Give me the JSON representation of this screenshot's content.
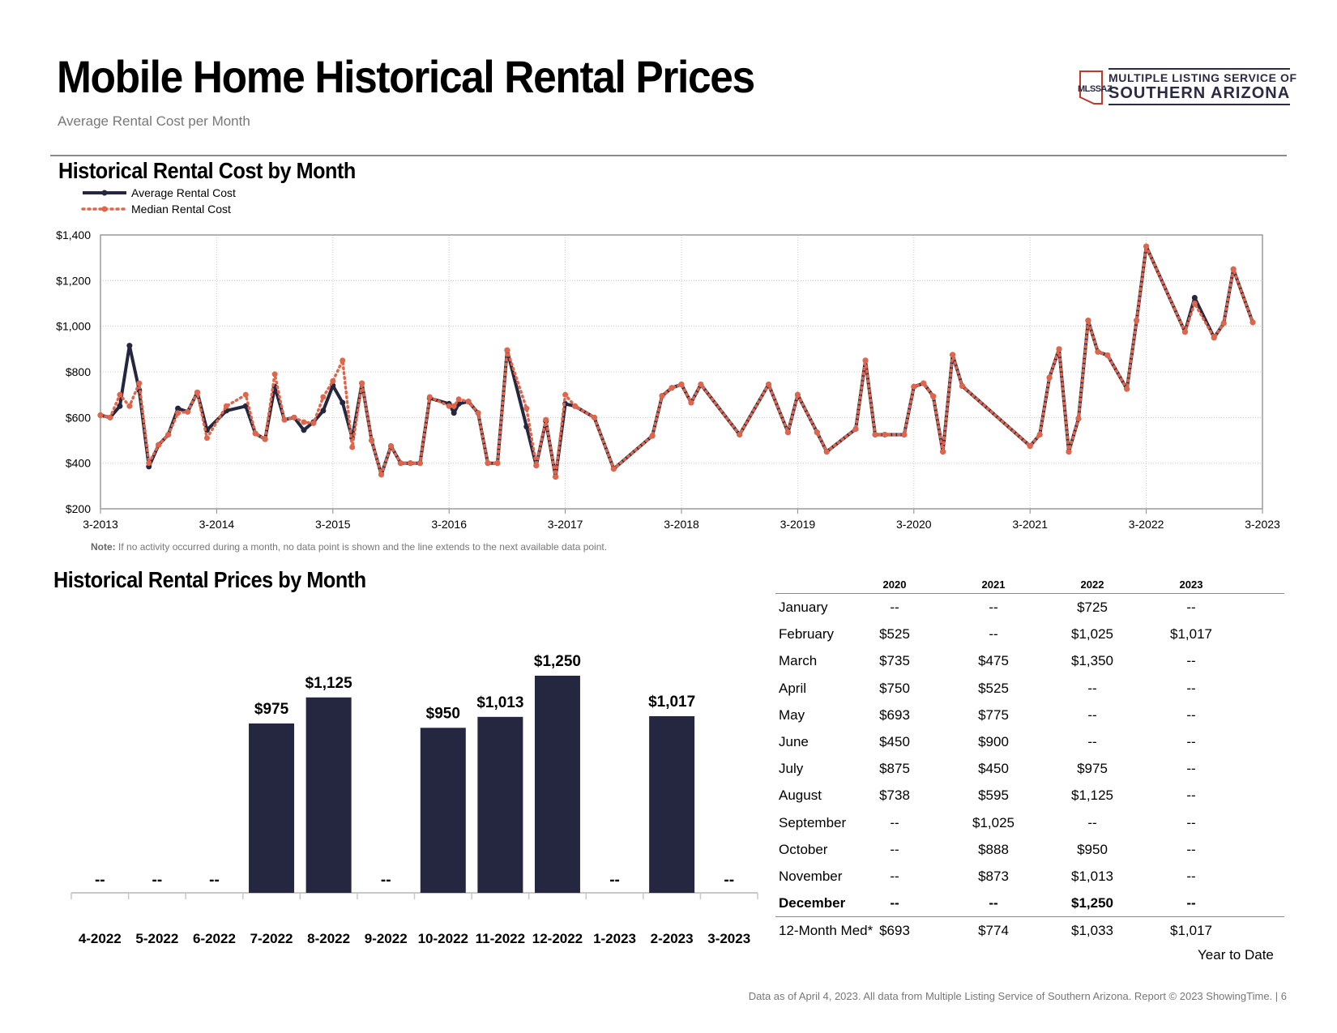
{
  "header": {
    "title": "Mobile Home Historical Rental Prices",
    "subtitle": "Average Rental Cost per Month",
    "logo_line1": "MULTIPLE LISTING SERVICE OF",
    "logo_line2": "SOUTHERN ARIZONA",
    "logo_abbr": "MLSSAZ"
  },
  "colors": {
    "navy": "#252640",
    "orange": "#e0654a",
    "grid": "#c8c8c8"
  },
  "chart_data": [
    {
      "type": "line",
      "title": "Historical Rental Cost by Month",
      "legend": [
        "Average Rental Cost",
        "Median Rental Cost"
      ],
      "ylim": [
        200,
        1400
      ],
      "yticks": [
        200,
        400,
        600,
        800,
        1000,
        1200,
        1400
      ],
      "ytick_labels": [
        "$200",
        "$400",
        "$600",
        "$800",
        "$1,000",
        "$1,200",
        "$1,400"
      ],
      "xlim": [
        0,
        120
      ],
      "xticks": [
        0,
        12,
        24,
        36,
        48,
        60,
        72,
        84,
        96,
        108,
        120
      ],
      "xtick_labels": [
        "3-2013",
        "3-2014",
        "3-2015",
        "3-2016",
        "3-2017",
        "3-2018",
        "3-2019",
        "3-2020",
        "3-2021",
        "3-2022",
        "3-2023"
      ],
      "note_label": "Note:",
      "note": "If no activity occurred during a month, no data point is shown and the line extends to the next available data point.",
      "series": [
        {
          "name": "Average Rental Cost",
          "points": [
            [
              0,
              610
            ],
            [
              1,
              600
            ],
            [
              2,
              650
            ],
            [
              3,
              915
            ],
            [
              4,
              720
            ],
            [
              5,
              385
            ],
            [
              6,
              480
            ],
            [
              7,
              525
            ],
            [
              8,
              640
            ],
            [
              9,
              625
            ],
            [
              10,
              710
            ],
            [
              11,
              545
            ],
            [
              13,
              630
            ],
            [
              15,
              650
            ],
            [
              16,
              530
            ],
            [
              17,
              505
            ],
            [
              18,
              735
            ],
            [
              19,
              590
            ],
            [
              20,
              600
            ],
            [
              21,
              545
            ],
            [
              22,
              580
            ],
            [
              23,
              630
            ],
            [
              24,
              740
            ],
            [
              25,
              665
            ],
            [
              26,
              510
            ],
            [
              27,
              750
            ],
            [
              28,
              500
            ],
            [
              29,
              350
            ],
            [
              30,
              475
            ],
            [
              31,
              400
            ],
            [
              32,
              400
            ],
            [
              33,
              400
            ],
            [
              34,
              685
            ],
            [
              36,
              660
            ],
            [
              36.5,
              620
            ],
            [
              37,
              660
            ],
            [
              38,
              670
            ],
            [
              39,
              620
            ],
            [
              40,
              400
            ],
            [
              41,
              400
            ],
            [
              42,
              895
            ],
            [
              44,
              560
            ],
            [
              45,
              390
            ],
            [
              46,
              585
            ],
            [
              47,
              340
            ],
            [
              48,
              660
            ],
            [
              49,
              650
            ],
            [
              51,
              600
            ],
            [
              53,
              375
            ],
            [
              57,
              520
            ],
            [
              58,
              695
            ],
            [
              59,
              730
            ],
            [
              60,
              745
            ],
            [
              61,
              665
            ],
            [
              62,
              745
            ],
            [
              66,
              525
            ],
            [
              69,
              745
            ],
            [
              71,
              535
            ],
            [
              72,
              700
            ],
            [
              74,
              535
            ],
            [
              75,
              450
            ],
            [
              78,
              550
            ],
            [
              79,
              850
            ],
            [
              80,
              525
            ],
            [
              81,
              525
            ],
            [
              83,
              525
            ],
            [
              84,
              735
            ],
            [
              85,
              750
            ],
            [
              86,
              693
            ],
            [
              87,
              450
            ],
            [
              88,
              875
            ],
            [
              89,
              738
            ],
            [
              96,
              475
            ],
            [
              97,
              525
            ],
            [
              98,
              775
            ],
            [
              99,
              900
            ],
            [
              100,
              450
            ],
            [
              101,
              595
            ],
            [
              102,
              1025
            ],
            [
              103,
              888
            ],
            [
              104,
              873
            ],
            [
              106,
              725
            ],
            [
              107,
              1025
            ],
            [
              108,
              1350
            ],
            [
              112,
              975
            ],
            [
              113,
              1125
            ],
            [
              115,
              950
            ],
            [
              116,
              1013
            ],
            [
              117,
              1250
            ],
            [
              119,
              1017
            ]
          ]
        },
        {
          "name": "Median Rental Cost",
          "points": [
            [
              0,
              610
            ],
            [
              1,
              600
            ],
            [
              2,
              700
            ],
            [
              3,
              650
            ],
            [
              4,
              750
            ],
            [
              5,
              400
            ],
            [
              6,
              480
            ],
            [
              7,
              525
            ],
            [
              8,
              620
            ],
            [
              9,
              625
            ],
            [
              10,
              710
            ],
            [
              11,
              510
            ],
            [
              13,
              650
            ],
            [
              15,
              700
            ],
            [
              16,
              530
            ],
            [
              17,
              505
            ],
            [
              18,
              790
            ],
            [
              19,
              590
            ],
            [
              20,
              600
            ],
            [
              21,
              580
            ],
            [
              22,
              575
            ],
            [
              23,
              690
            ],
            [
              24,
              760
            ],
            [
              25,
              850
            ],
            [
              26,
              470
            ],
            [
              27,
              750
            ],
            [
              28,
              500
            ],
            [
              29,
              350
            ],
            [
              30,
              475
            ],
            [
              31,
              400
            ],
            [
              32,
              400
            ],
            [
              33,
              400
            ],
            [
              34,
              690
            ],
            [
              36,
              650
            ],
            [
              36.5,
              650
            ],
            [
              37,
              680
            ],
            [
              38,
              670
            ],
            [
              39,
              620
            ],
            [
              40,
              400
            ],
            [
              41,
              400
            ],
            [
              42,
              895
            ],
            [
              44,
              640
            ],
            [
              45,
              390
            ],
            [
              46,
              590
            ],
            [
              47,
              340
            ],
            [
              48,
              700
            ],
            [
              49,
              650
            ],
            [
              51,
              600
            ],
            [
              53,
              375
            ],
            [
              57,
              520
            ],
            [
              58,
              695
            ],
            [
              59,
              730
            ],
            [
              60,
              745
            ],
            [
              61,
              665
            ],
            [
              62,
              745
            ],
            [
              66,
              525
            ],
            [
              69,
              745
            ],
            [
              71,
              535
            ],
            [
              72,
              700
            ],
            [
              74,
              535
            ],
            [
              75,
              450
            ],
            [
              78,
              550
            ],
            [
              79,
              850
            ],
            [
              80,
              525
            ],
            [
              81,
              525
            ],
            [
              83,
              525
            ],
            [
              84,
              735
            ],
            [
              85,
              750
            ],
            [
              86,
              693
            ],
            [
              87,
              450
            ],
            [
              88,
              875
            ],
            [
              89,
              738
            ],
            [
              96,
              475
            ],
            [
              97,
              525
            ],
            [
              98,
              775
            ],
            [
              99,
              900
            ],
            [
              100,
              450
            ],
            [
              101,
              595
            ],
            [
              102,
              1025
            ],
            [
              103,
              888
            ],
            [
              104,
              873
            ],
            [
              106,
              725
            ],
            [
              107,
              1025
            ],
            [
              108,
              1350
            ],
            [
              112,
              975
            ],
            [
              113,
              1100
            ],
            [
              115,
              950
            ],
            [
              116,
              1013
            ],
            [
              117,
              1250
            ],
            [
              119,
              1017
            ]
          ]
        }
      ]
    },
    {
      "type": "bar",
      "title": "Historical Rental Prices by Month",
      "categories": [
        "4-2022",
        "5-2022",
        "6-2022",
        "7-2022",
        "8-2022",
        "9-2022",
        "10-2022",
        "11-2022",
        "12-2022",
        "1-2023",
        "2-2023",
        "3-2023"
      ],
      "values": [
        null,
        null,
        null,
        975,
        1125,
        null,
        950,
        1013,
        1250,
        null,
        1017,
        null
      ],
      "labels": [
        "--",
        "--",
        "--",
        "$975",
        "$1,125",
        "--",
        "$950",
        "$1,013",
        "$1,250",
        "--",
        "$1,017",
        "--"
      ],
      "ylim": [
        0,
        1250
      ]
    },
    {
      "type": "table",
      "columns": [
        "2020",
        "2021",
        "2022",
        "2023"
      ],
      "rows": [
        {
          "label": "January",
          "values": [
            "--",
            "--",
            "$725",
            "--"
          ]
        },
        {
          "label": "February",
          "values": [
            "$525",
            "--",
            "$1,025",
            "$1,017"
          ]
        },
        {
          "label": "March",
          "values": [
            "$735",
            "$475",
            "$1,350",
            "--"
          ]
        },
        {
          "label": "April",
          "values": [
            "$750",
            "$525",
            "--",
            "--"
          ]
        },
        {
          "label": "May",
          "values": [
            "$693",
            "$775",
            "--",
            "--"
          ]
        },
        {
          "label": "June",
          "values": [
            "$450",
            "$900",
            "--",
            "--"
          ]
        },
        {
          "label": "July",
          "values": [
            "$875",
            "$450",
            "$975",
            "--"
          ]
        },
        {
          "label": "August",
          "values": [
            "$738",
            "$595",
            "$1,125",
            "--"
          ]
        },
        {
          "label": "September",
          "values": [
            "--",
            "$1,025",
            "--",
            "--"
          ]
        },
        {
          "label": "October",
          "values": [
            "--",
            "$888",
            "$950",
            "--"
          ]
        },
        {
          "label": "November",
          "values": [
            "--",
            "$873",
            "$1,013",
            "--"
          ]
        },
        {
          "label": "December",
          "values": [
            "--",
            "--",
            "$1,250",
            "--"
          ]
        }
      ],
      "summary": {
        "label": "12-Month Med*",
        "values": [
          "$693",
          "$774",
          "$1,033",
          "$1,017"
        ]
      },
      "ytd_label": "Year to Date"
    }
  ],
  "footer": "Data as of April 4, 2023. All data from Multiple Listing Service of Southern Arizona. Report © 2023 ShowingTime. | 6"
}
